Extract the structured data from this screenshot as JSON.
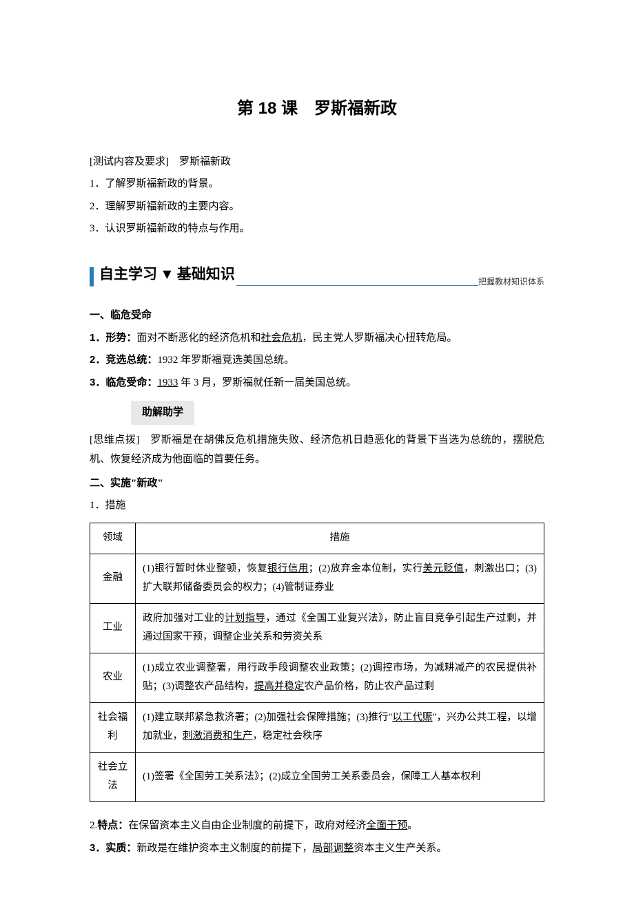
{
  "title": "第 18 课　罗斯福新政",
  "test_header": "[测试内容及要求]　罗斯福新政",
  "test_items": [
    "1．了解罗斯福新政的背景。",
    "2．理解罗斯福新政的主要内容。",
    "3．认识罗斯福新政的特点与作用。"
  ],
  "section_bar": {
    "left": "自主学习",
    "marker": "▼",
    "right": "基础知识",
    "caption": "把握教材知识体系",
    "accent_color": "#2a7db8"
  },
  "sec1": {
    "heading": "一、临危受命",
    "p1_pre": "1．形势：面对不断恶化的经济危机和",
    "p1_u": "社会危机",
    "p1_post": "，民主党人罗斯福决心扭转危局。",
    "p2": "2．竞选总统：1932 年罗斯福竞选美国总统。",
    "p3_pre": "3．临危受命：",
    "p3_u": "1933",
    "p3_post": " 年 3 月，罗斯福就任新一届美国总统。"
  },
  "helper_label": "助解助学",
  "hint": {
    "label": "[思维点拨]",
    "text": "　罗斯福是在胡佛反危机措施失败、经济危机日趋恶化的背景下当选为总统的，摆脱危机、恢复经济成为他面临的首要任务。"
  },
  "sec2": {
    "heading": "二、实施\"新政\"",
    "sub1": "1．措施"
  },
  "table": {
    "headers": [
      "领域",
      "措施"
    ],
    "rows": [
      {
        "label": "金融",
        "segs": [
          {
            "t": "(1)银行暂时休业整顿，恢复"
          },
          {
            "t": "银行信用",
            "u": true
          },
          {
            "t": "；(2)放弃金本位制，实行"
          },
          {
            "t": "美元贬值",
            "u": true
          },
          {
            "t": "，刺激出口；(3)扩大联邦储备委员会的权力；(4)管制证券业"
          }
        ]
      },
      {
        "label": "工业",
        "segs": [
          {
            "t": "政府加强对工业的"
          },
          {
            "t": "计划指导",
            "u": true
          },
          {
            "t": "，通过《全国工业复兴法》，防止盲目竞争引起生产过剩，并通过国家干预，调整企业关系和劳资关系"
          }
        ]
      },
      {
        "label": "农业",
        "segs": [
          {
            "t": "(1)成立农业调整署，用行政手段调整农业政策；(2)调控市场，为减耕减产的农民提供补贴；(3)调整农产品结构，"
          },
          {
            "t": "提高并稳定",
            "u": true
          },
          {
            "t": "农产品价格，防止农产品过剩"
          }
        ]
      },
      {
        "label": "社会福利",
        "segs": [
          {
            "t": "(1)建立联邦紧急救济署；(2)加强社会保障措施；(3)推行\""
          },
          {
            "t": "以工代赈",
            "u": true
          },
          {
            "t": "\"，兴办公共工程，以增加就业，"
          },
          {
            "t": "刺激消费和生产",
            "u": true
          },
          {
            "t": "，稳定社会秩序"
          }
        ]
      },
      {
        "label": "社会立法",
        "segs": [
          {
            "t": "(1)签署《全国劳工关系法》；(2)成立全国劳工关系委员会，保障工人基本权利"
          }
        ]
      }
    ]
  },
  "point2": {
    "pre": "2.特点：在保留资本主义自由企业制度的前提下，政府对经济",
    "u": "全面干预",
    "post": "。"
  },
  "point3": {
    "pre": "3．实质：新政是在维护资本主义制度的前提下，",
    "u": "局部调整",
    "post": "资本主义生产关系。"
  }
}
